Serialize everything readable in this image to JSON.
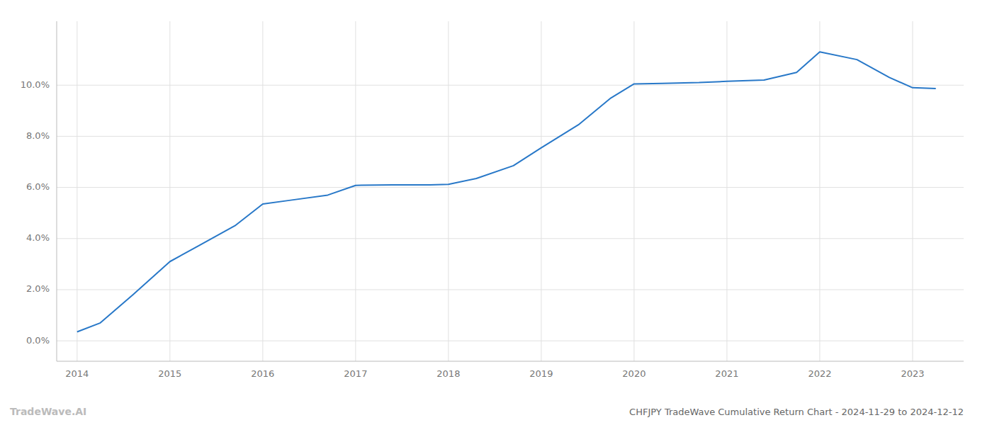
{
  "chart_data": {
    "type": "line",
    "title": "CHFJPY TradeWave Cumulative Return Chart - 2024-11-29 to 2024-12-12",
    "annotations": [
      {
        "text": "TradeWave.AI"
      }
    ],
    "x": [
      2014.0,
      2014.25,
      2014.6,
      2015.0,
      2015.3,
      2015.7,
      2016.0,
      2016.3,
      2016.7,
      2017.0,
      2017.4,
      2017.8,
      2018.0,
      2018.3,
      2018.7,
      2019.0,
      2019.4,
      2019.75,
      2020.0,
      2020.3,
      2020.7,
      2021.0,
      2021.4,
      2021.75,
      2022.0,
      2022.4,
      2022.75,
      2023.0,
      2023.25
    ],
    "values": [
      0.35,
      0.7,
      1.8,
      3.1,
      3.7,
      4.5,
      5.35,
      5.5,
      5.7,
      6.08,
      6.1,
      6.1,
      6.12,
      6.35,
      6.85,
      7.55,
      8.45,
      9.5,
      10.05,
      10.07,
      10.1,
      10.15,
      10.2,
      10.5,
      11.3,
      11.0,
      10.3,
      9.9,
      9.87
    ],
    "color": "#2878c8",
    "xlim": [
      2013.78,
      2023.55
    ],
    "xticks": [
      2014,
      2015,
      2016,
      2017,
      2018,
      2019,
      2020,
      2021,
      2022,
      2023
    ],
    "ylim": [
      -0.8,
      12.5
    ],
    "yticks": [
      {
        "value": 0.0,
        "label": "0.0%"
      },
      {
        "value": 2.0,
        "label": "2.0%"
      },
      {
        "value": 4.0,
        "label": "4.0%"
      },
      {
        "value": 6.0,
        "label": "6.0%"
      },
      {
        "value": 8.0,
        "label": "8.0%"
      },
      {
        "value": 10.0,
        "label": "10.0%"
      }
    ],
    "grid": true
  }
}
